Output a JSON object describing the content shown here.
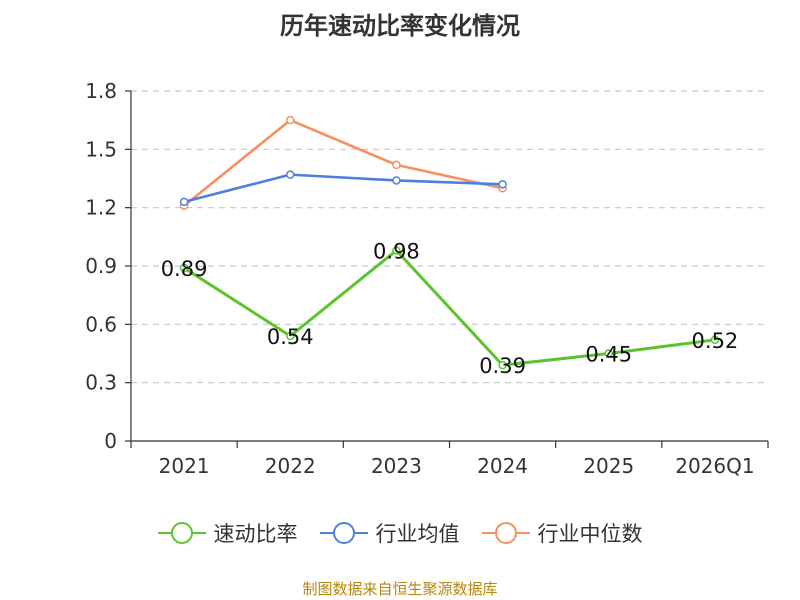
{
  "chart_data": {
    "type": "line",
    "title": "历年速动比率变化情况",
    "categories": [
      "2021",
      "2022",
      "2023",
      "2024",
      "2025",
      "2026Q1"
    ],
    "y_ticks": [
      "0",
      "0.3",
      "0.6",
      "0.9",
      "1.2",
      "1.5",
      "1.8"
    ],
    "ylim": [
      0,
      1.8
    ],
    "grid": true,
    "legend_position": "bottom",
    "series": [
      {
        "name": "速动比率",
        "color": "#5ac42c",
        "values": [
          0.89,
          0.54,
          0.98,
          0.39,
          0.45,
          0.52
        ],
        "labels": [
          "0.89",
          "0.54",
          "0.98",
          "0.39",
          "0.45",
          "0.52"
        ]
      },
      {
        "name": "行业均值",
        "color": "#4f7fde",
        "values": [
          1.23,
          1.37,
          1.34,
          1.32,
          null,
          null
        ]
      },
      {
        "name": "行业中位数",
        "color": "#f6905e",
        "values": [
          1.21,
          1.65,
          1.42,
          1.3,
          null,
          null
        ]
      }
    ],
    "source": "制图数据来自恒生聚源数据库"
  }
}
